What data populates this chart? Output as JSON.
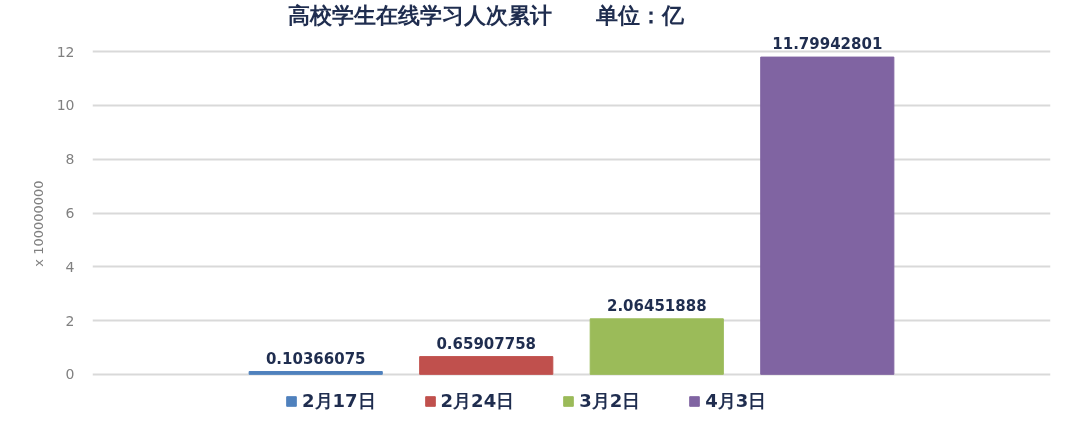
{
  "chart_data": {
    "type": "bar",
    "title": "高校学生在线学习人次累计　　单位：亿",
    "ylabel": "x 100000000",
    "categories": [
      null
    ],
    "series": [
      {
        "name": "2月17日",
        "color": "#4f81bd",
        "values": [
          0.10366075
        ]
      },
      {
        "name": "2月24日",
        "color": "#c0504d",
        "values": [
          0.65907758
        ]
      },
      {
        "name": "3月2日",
        "color": "#9bbb59",
        "values": [
          2.06451888
        ]
      },
      {
        "name": "4月3日",
        "color": "#8064a2",
        "values": [
          11.79942801
        ]
      }
    ],
    "ylim": [
      0,
      12
    ],
    "yticks": [
      0,
      2,
      4,
      6,
      8,
      10,
      12
    ],
    "grid": "y",
    "legend": "bottom",
    "data_labels": true
  }
}
